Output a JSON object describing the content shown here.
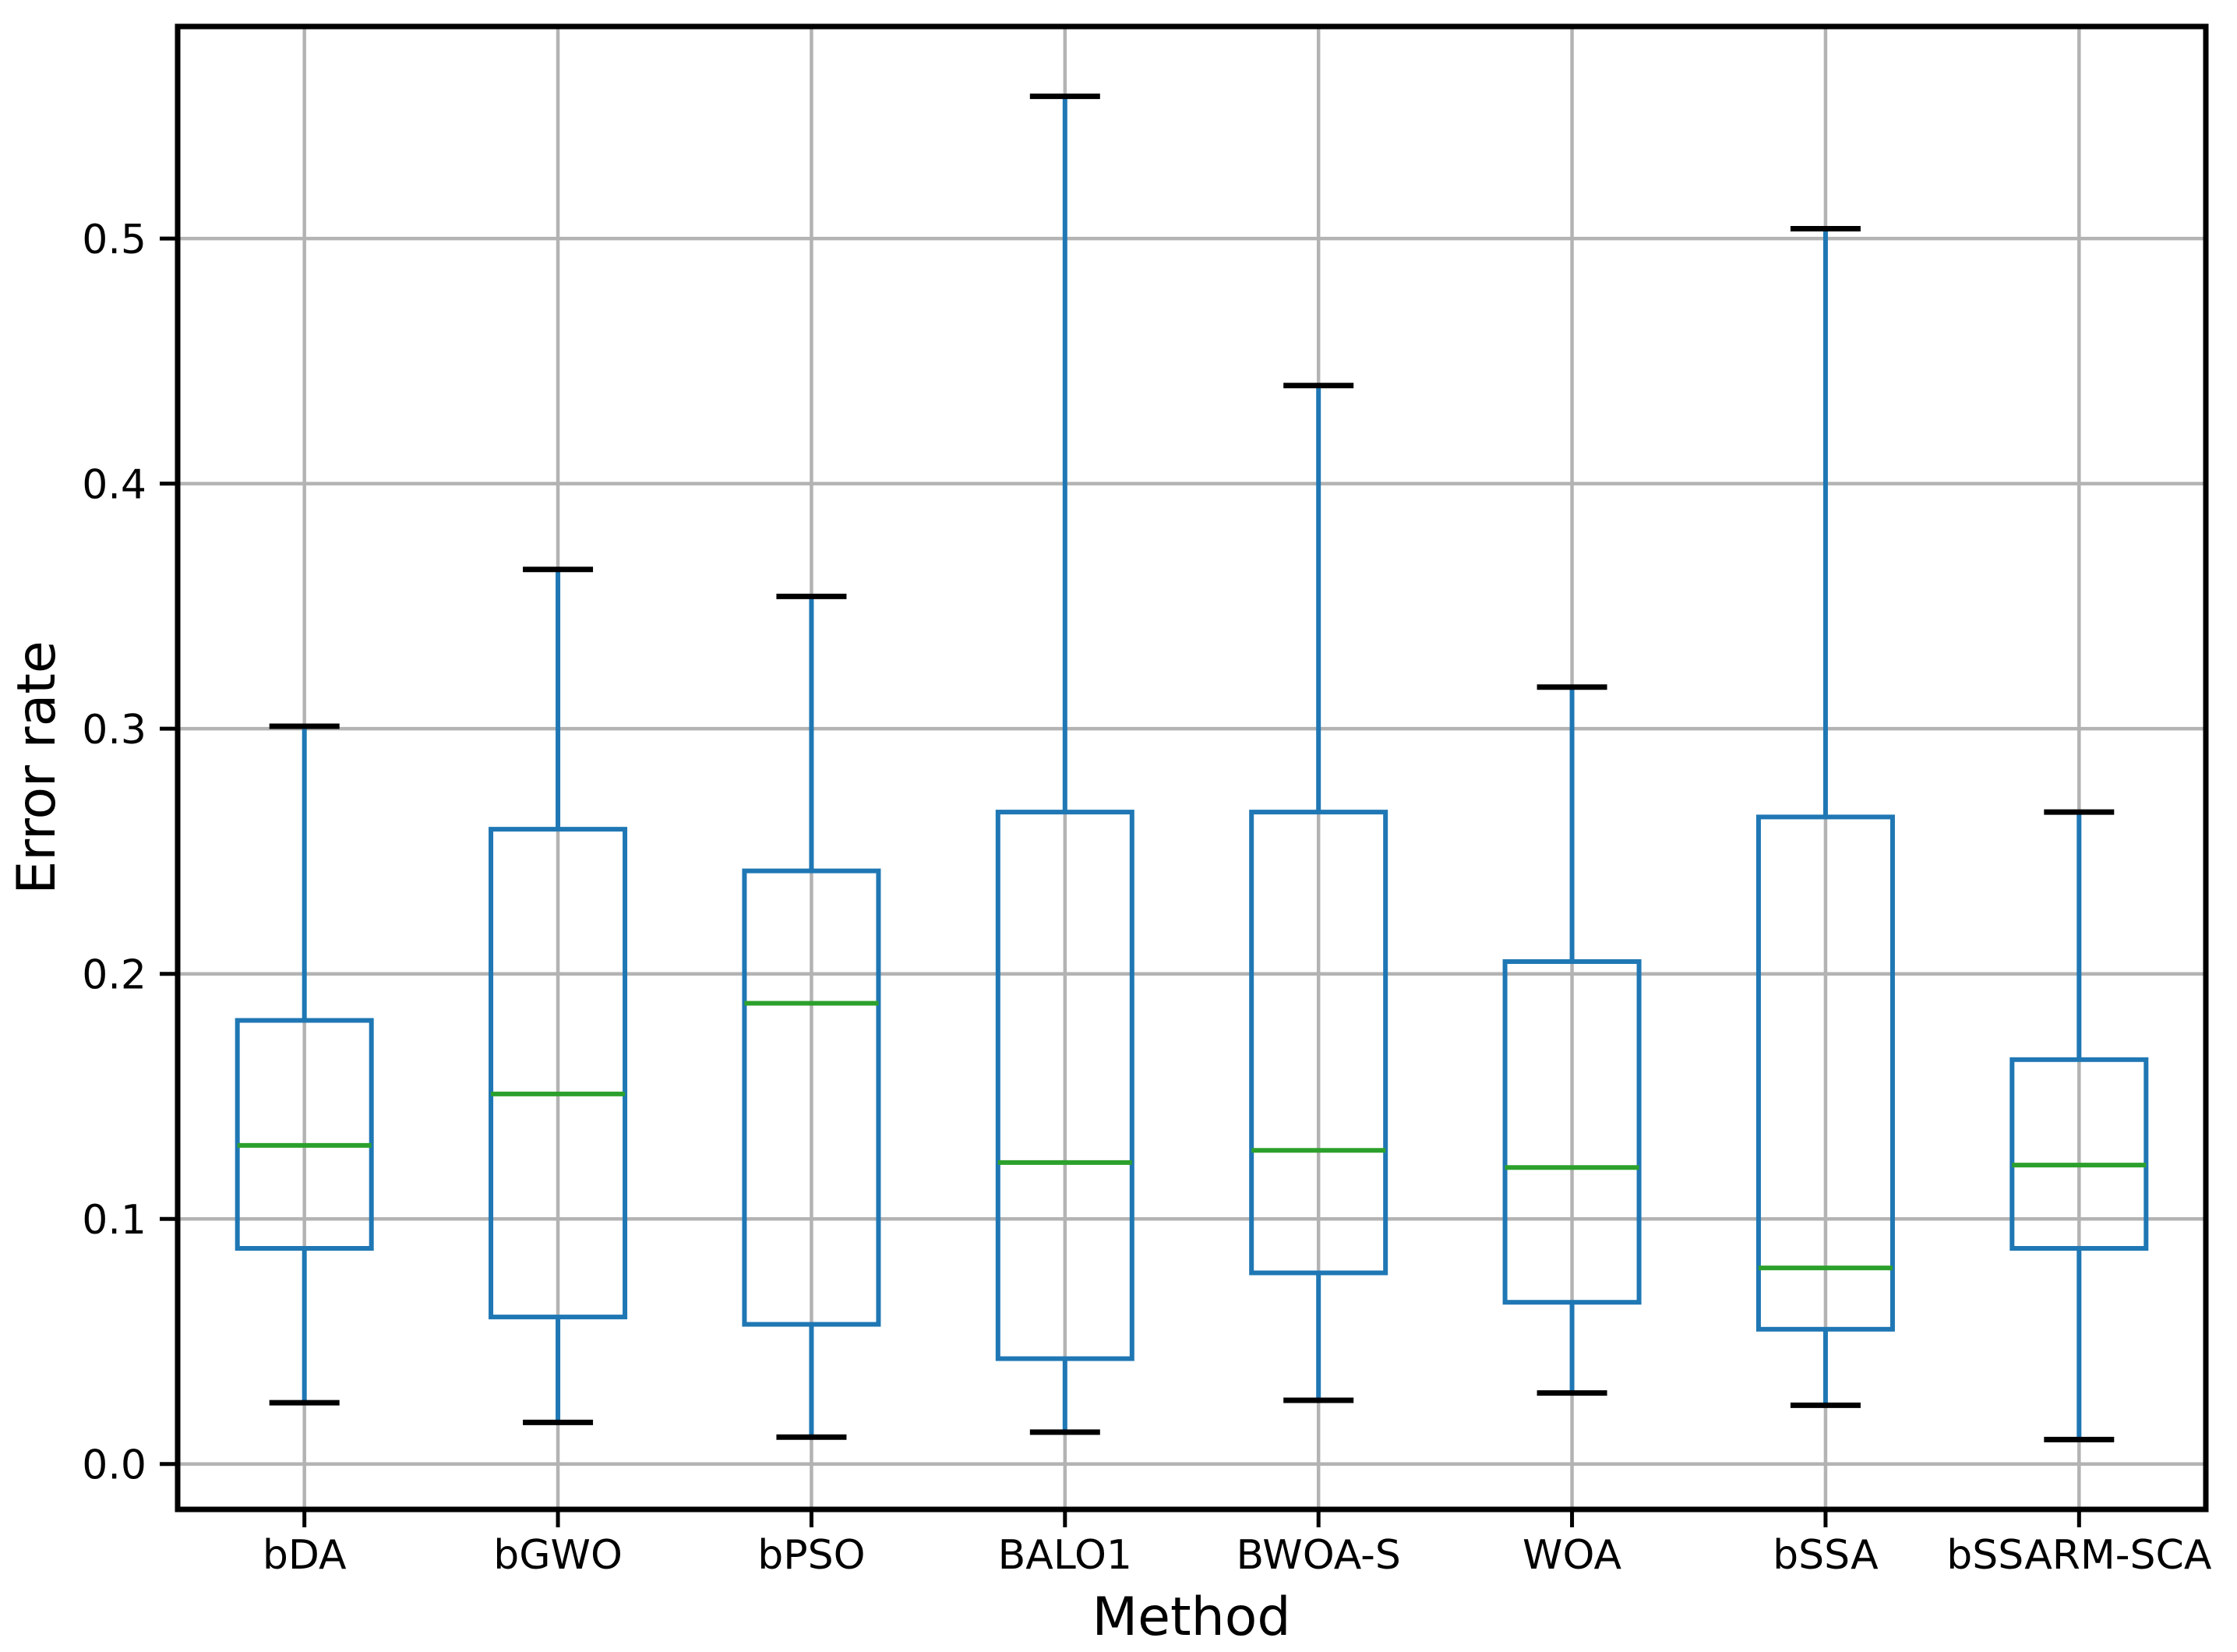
{
  "chart_data": {
    "type": "boxplot",
    "title": "",
    "xlabel": "Method",
    "ylabel": "Error rate",
    "categories": [
      "bDA",
      "bGWO",
      "bPSO",
      "BALO1",
      "BWOA-S",
      "WOA",
      "bSSA",
      "bSSARM-SCA"
    ],
    "series": [
      {
        "name": "bDA",
        "whisker_low": 0.025,
        "q1": 0.088,
        "median": 0.13,
        "q3": 0.181,
        "whisker_high": 0.301
      },
      {
        "name": "bGWO",
        "whisker_low": 0.017,
        "q1": 0.06,
        "median": 0.151,
        "q3": 0.259,
        "whisker_high": 0.365
      },
      {
        "name": "bPSO",
        "whisker_low": 0.011,
        "q1": 0.057,
        "median": 0.188,
        "q3": 0.242,
        "whisker_high": 0.354
      },
      {
        "name": "BALO1",
        "whisker_low": 0.013,
        "q1": 0.043,
        "median": 0.123,
        "q3": 0.266,
        "whisker_high": 0.558
      },
      {
        "name": "BWOA-S",
        "whisker_low": 0.026,
        "q1": 0.078,
        "median": 0.128,
        "q3": 0.266,
        "whisker_high": 0.44
      },
      {
        "name": "WOA",
        "whisker_low": 0.029,
        "q1": 0.066,
        "median": 0.121,
        "q3": 0.205,
        "whisker_high": 0.317
      },
      {
        "name": "bSSA",
        "whisker_low": 0.024,
        "q1": 0.055,
        "median": 0.08,
        "q3": 0.264,
        "whisker_high": 0.504
      },
      {
        "name": "bSSARM-SCA",
        "whisker_low": 0.01,
        "q1": 0.088,
        "median": 0.122,
        "q3": 0.165,
        "whisker_high": 0.266
      }
    ],
    "ylim": [
      -0.0185,
      0.5865
    ],
    "yticks": [
      0.0,
      0.1,
      0.2,
      0.3,
      0.4,
      0.5
    ],
    "ytick_labels": [
      "0.0",
      "0.1",
      "0.2",
      "0.3",
      "0.4",
      "0.5"
    ],
    "grid": true,
    "legend_position": "none",
    "colors": {
      "box_edge": "#1f77b4",
      "whisker": "#1f77b4",
      "median": "#2ca02c",
      "cap": "#000000",
      "grid": "#b3b3b3",
      "spine": "#000000",
      "text": "#000000",
      "background": "#ffffff"
    }
  }
}
